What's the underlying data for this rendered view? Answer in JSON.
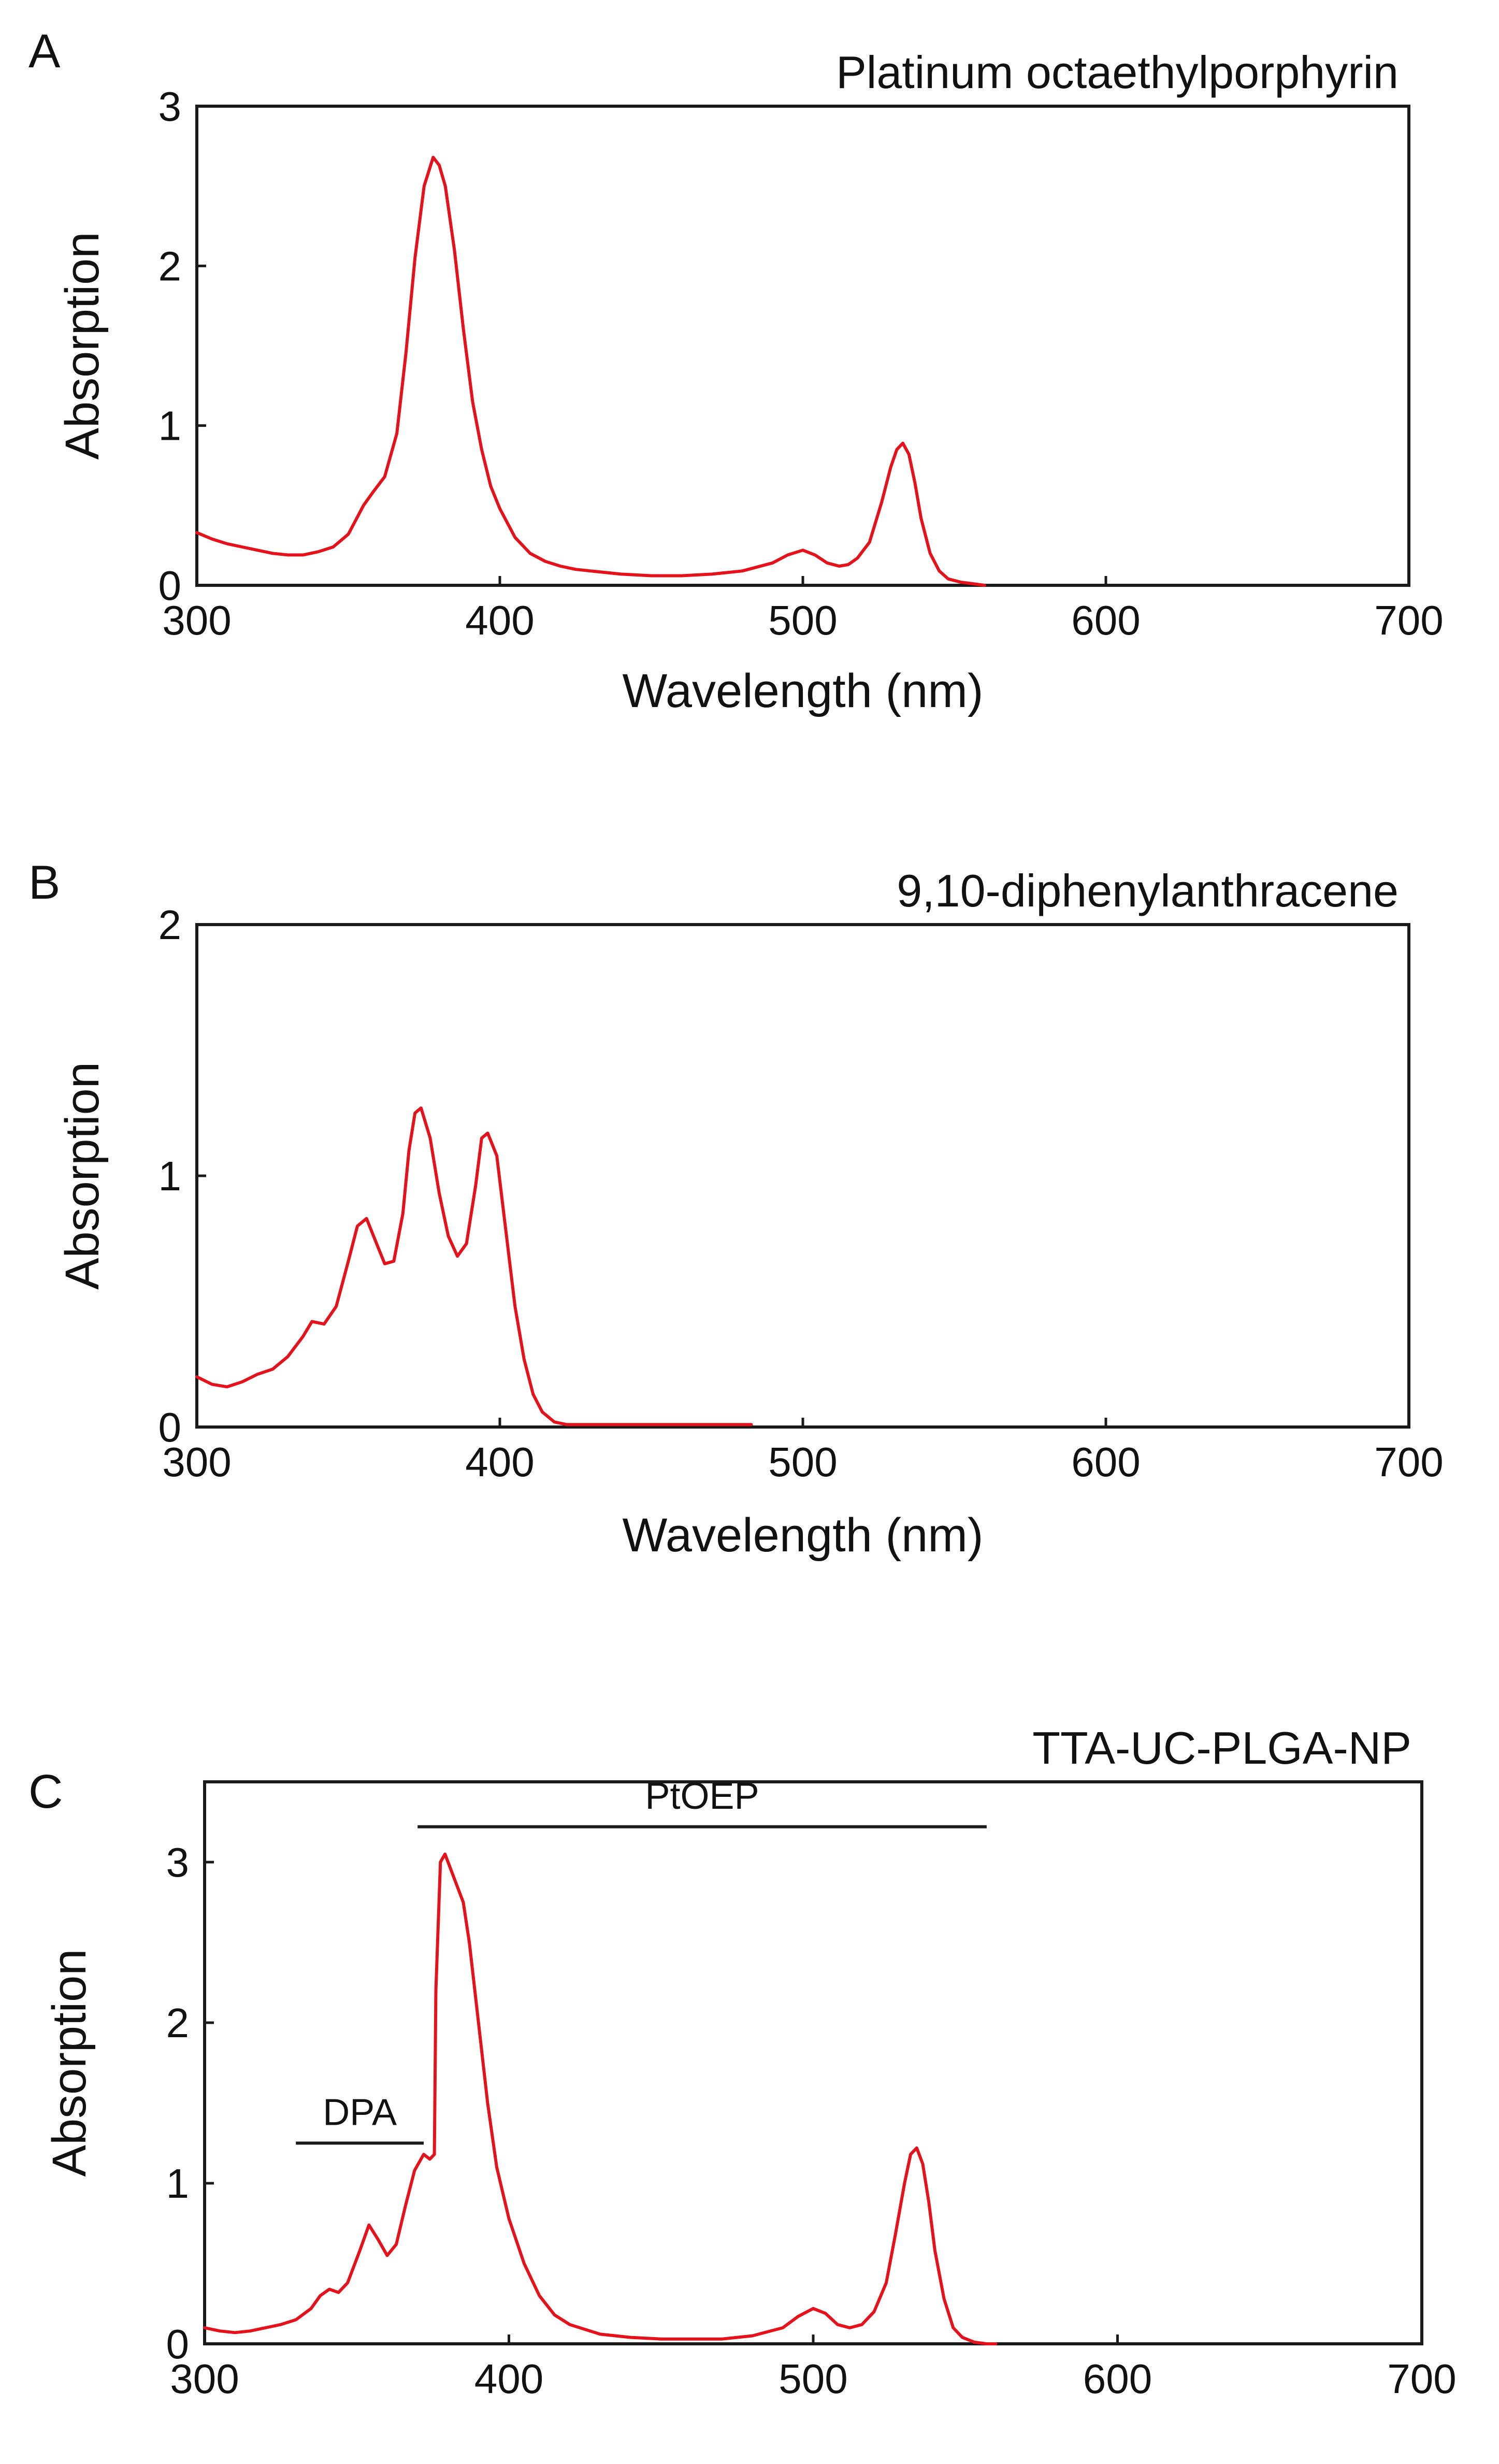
{
  "figure": {
    "line_color": "#e3121b",
    "axis_color": "#1a1a1a",
    "background": "#ffffff"
  },
  "chart_data": [
    {
      "panel": "A",
      "type": "line",
      "title": "Platinum octaethylporphyrin",
      "xlabel": "Wavelength (nm)",
      "ylabel": "Absorption",
      "xlim": [
        300,
        700
      ],
      "ylim": [
        0,
        3
      ],
      "xticks": [
        300,
        400,
        500,
        600,
        700
      ],
      "yticks": [
        0,
        1,
        2,
        3
      ],
      "xtick_labels": [
        "300",
        "400",
        "500",
        "600",
        "700"
      ],
      "ytick_labels": [
        "0",
        "1",
        "2",
        "3"
      ],
      "series": [
        {
          "name": "Platinum octaethylporphyrin",
          "x": [
            300,
            305,
            310,
            315,
            320,
            325,
            330,
            335,
            340,
            345,
            350,
            355,
            358,
            362,
            366,
            369,
            372,
            375,
            378,
            380,
            382,
            385,
            388,
            391,
            394,
            397,
            400,
            405,
            410,
            415,
            420,
            425,
            430,
            440,
            450,
            460,
            470,
            480,
            490,
            495,
            500,
            504,
            508,
            512,
            515,
            518,
            522,
            526,
            529,
            531,
            533,
            535,
            537,
            539,
            542,
            545,
            548,
            552,
            556,
            560
          ],
          "values": [
            0.33,
            0.29,
            0.26,
            0.24,
            0.22,
            0.2,
            0.19,
            0.19,
            0.21,
            0.24,
            0.32,
            0.5,
            0.58,
            0.68,
            0.95,
            1.45,
            2.05,
            2.5,
            2.68,
            2.63,
            2.5,
            2.1,
            1.6,
            1.15,
            0.85,
            0.62,
            0.48,
            0.3,
            0.2,
            0.15,
            0.12,
            0.1,
            0.09,
            0.07,
            0.06,
            0.06,
            0.07,
            0.09,
            0.14,
            0.19,
            0.22,
            0.19,
            0.14,
            0.12,
            0.13,
            0.17,
            0.27,
            0.52,
            0.74,
            0.85,
            0.89,
            0.82,
            0.64,
            0.42,
            0.2,
            0.09,
            0.04,
            0.02,
            0.01,
            0.0
          ]
        }
      ]
    },
    {
      "panel": "B",
      "type": "line",
      "title": "9,10-diphenylanthracene",
      "xlabel": "Wavelength (nm)",
      "ylabel": "Absorption",
      "xlim": [
        300,
        700
      ],
      "ylim": [
        0,
        2
      ],
      "xticks": [
        300,
        400,
        500,
        600,
        700
      ],
      "yticks": [
        0,
        1,
        2
      ],
      "xtick_labels": [
        "300",
        "400",
        "500",
        "600",
        "700"
      ],
      "ytick_labels": [
        "0",
        "1",
        "2"
      ],
      "series": [
        {
          "name": "9,10-diphenylanthracene",
          "x": [
            300,
            305,
            310,
            315,
            320,
            325,
            330,
            335,
            338,
            342,
            346,
            350,
            353,
            356,
            359,
            362,
            365,
            368,
            370,
            372,
            374,
            377,
            380,
            383,
            386,
            389,
            392,
            394,
            396,
            399,
            402,
            405,
            408,
            411,
            414,
            418,
            422,
            430,
            440,
            450,
            460,
            470,
            480,
            483
          ],
          "values": [
            0.2,
            0.17,
            0.16,
            0.18,
            0.21,
            0.23,
            0.28,
            0.36,
            0.42,
            0.41,
            0.48,
            0.66,
            0.8,
            0.83,
            0.74,
            0.65,
            0.66,
            0.85,
            1.1,
            1.25,
            1.27,
            1.15,
            0.93,
            0.76,
            0.68,
            0.73,
            0.96,
            1.15,
            1.17,
            1.08,
            0.78,
            0.48,
            0.27,
            0.13,
            0.06,
            0.02,
            0.01,
            0.01,
            0.01,
            0.01,
            0.01,
            0.01,
            0.01,
            0.01
          ]
        }
      ]
    },
    {
      "panel": "C",
      "type": "line",
      "title": "TTA-UC-PLGA-NP",
      "xlabel": "",
      "ylabel": "Absorption",
      "xlim": [
        300,
        700
      ],
      "ylim": [
        0,
        3.5
      ],
      "xticks": [
        300,
        400,
        500,
        600,
        700
      ],
      "yticks": [
        0,
        1,
        2,
        3
      ],
      "xtick_labels": [
        "300",
        "400",
        "500",
        "600",
        "700"
      ],
      "ytick_labels": [
        "0",
        "1",
        "2",
        "3"
      ],
      "annotations": [
        {
          "label": "DPA",
          "x_start": 330,
          "x_end": 372,
          "y": 1.25
        },
        {
          "label": "PtOEP",
          "x_start": 370,
          "x_end": 557,
          "y": 3.22
        }
      ],
      "series": [
        {
          "name": "TTA-UC-PLGA-NP",
          "x": [
            300,
            305,
            310,
            315,
            320,
            325,
            330,
            335,
            338,
            341,
            344,
            347,
            351,
            354,
            357,
            360,
            363,
            366,
            369,
            372,
            374,
            375.5,
            376,
            377.5,
            379,
            381,
            383,
            385,
            387,
            390,
            393,
            396,
            400,
            405,
            410,
            415,
            420,
            430,
            440,
            450,
            460,
            470,
            480,
            490,
            495,
            500,
            504,
            508,
            512,
            516,
            520,
            524,
            527,
            530,
            532,
            534,
            536,
            538,
            540,
            543,
            546,
            549,
            553,
            557,
            560
          ],
          "values": [
            0.1,
            0.08,
            0.07,
            0.08,
            0.1,
            0.12,
            0.15,
            0.22,
            0.3,
            0.34,
            0.32,
            0.38,
            0.58,
            0.74,
            0.65,
            0.55,
            0.62,
            0.86,
            1.08,
            1.18,
            1.15,
            1.18,
            2.2,
            3.0,
            3.05,
            2.95,
            2.85,
            2.75,
            2.5,
            2.0,
            1.5,
            1.1,
            0.78,
            0.5,
            0.3,
            0.18,
            0.12,
            0.06,
            0.04,
            0.03,
            0.03,
            0.03,
            0.05,
            0.1,
            0.17,
            0.22,
            0.19,
            0.12,
            0.1,
            0.12,
            0.2,
            0.38,
            0.68,
            1.0,
            1.18,
            1.22,
            1.12,
            0.88,
            0.58,
            0.28,
            0.1,
            0.04,
            0.01,
            0.0,
            0.0
          ]
        }
      ]
    }
  ]
}
